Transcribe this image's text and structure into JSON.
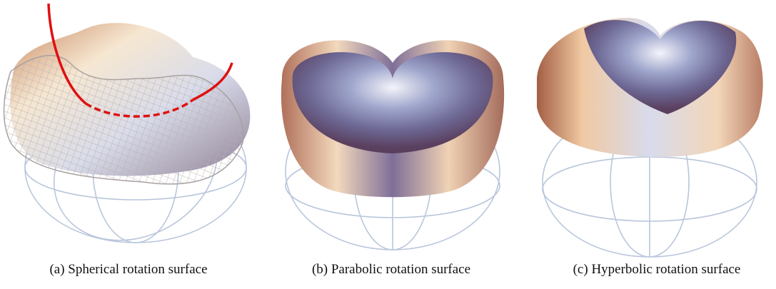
{
  "figure": {
    "subfigures": [
      {
        "caption": "(a) Spherical rotation surface"
      },
      {
        "caption": "(b) Parabolic rotation surface"
      },
      {
        "caption": "(c) Hyperbolic rotation surface"
      }
    ]
  }
}
